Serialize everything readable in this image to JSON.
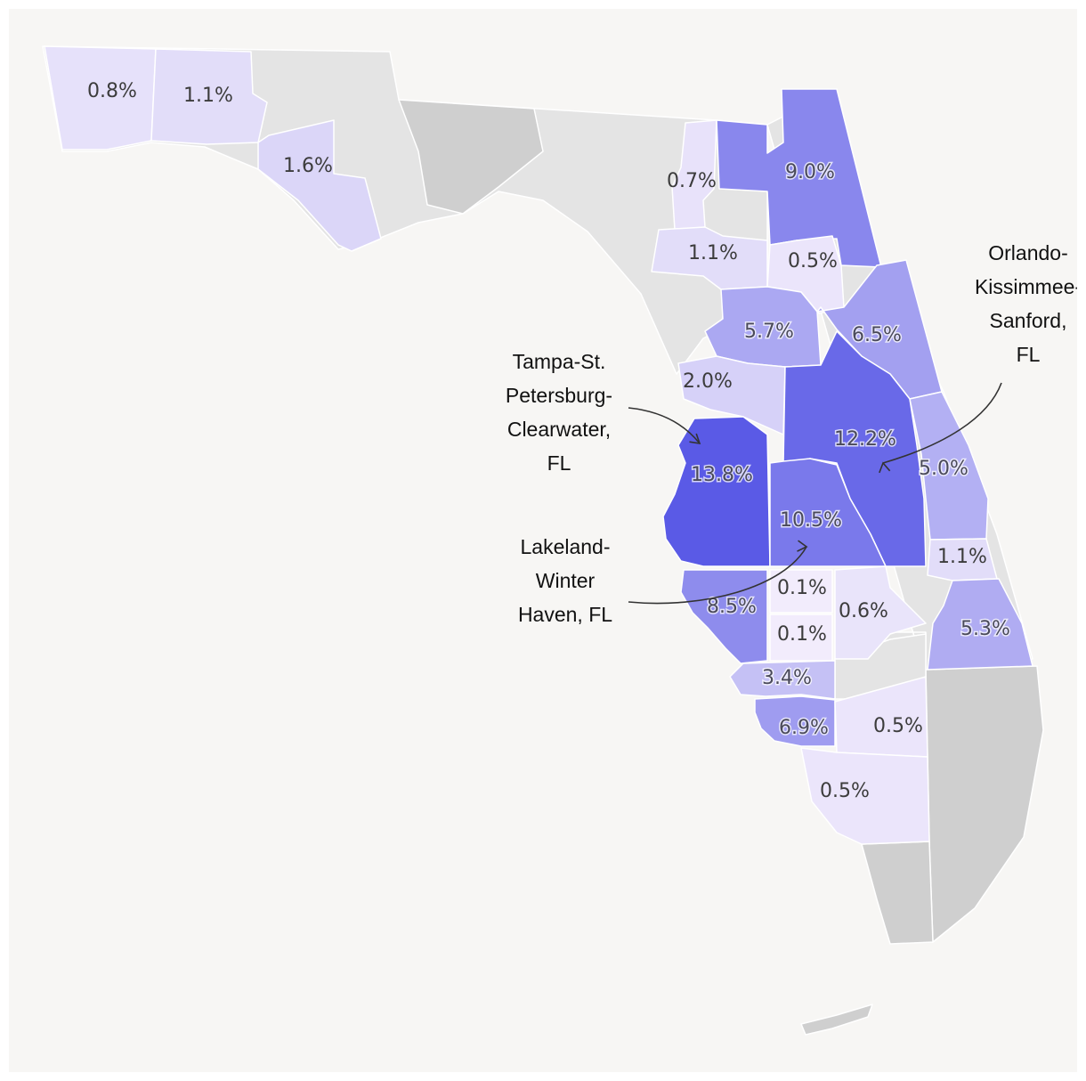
{
  "map": {
    "colors": {
      "background": "#f7f6f4",
      "no_data": "#e4e4e4",
      "no_data_dark": "#cfcfcf",
      "scale_low": "#f4eefc",
      "scale_high": "#5a5ae6"
    },
    "regions": [
      {
        "id": "pensacola",
        "label": "0.8%",
        "value": 0.8
      },
      {
        "id": "crestview",
        "label": "1.1%",
        "value": 1.1
      },
      {
        "id": "panama-city",
        "label": "1.6%",
        "value": 1.6
      },
      {
        "id": "lake-city",
        "label": "0.7%",
        "value": 0.7
      },
      {
        "id": "jacksonville",
        "label": "9.0%",
        "value": 9.0
      },
      {
        "id": "gainesville",
        "label": "1.1%",
        "value": 1.1
      },
      {
        "id": "palatka",
        "label": "0.5%",
        "value": 0.5
      },
      {
        "id": "ocala",
        "label": "5.7%",
        "value": 5.7
      },
      {
        "id": "deltona",
        "label": "6.5%",
        "value": 6.5
      },
      {
        "id": "homosassa",
        "label": "2.0%",
        "value": 2.0
      },
      {
        "id": "orlando",
        "label": "12.2%",
        "value": 12.2
      },
      {
        "id": "tampa",
        "label": "13.8%",
        "value": 13.8
      },
      {
        "id": "palm-bay",
        "label": "5.0%",
        "value": 5.0
      },
      {
        "id": "lakeland",
        "label": "10.5%",
        "value": 10.5
      },
      {
        "id": "sebastian",
        "label": "1.1%",
        "value": 1.1
      },
      {
        "id": "arcadia",
        "label": "0.1%",
        "value": 0.1
      },
      {
        "id": "wauchula",
        "label": "0.1%",
        "value": 0.1
      },
      {
        "id": "sebring",
        "label": "0.6%",
        "value": 0.6
      },
      {
        "id": "north-port",
        "label": "8.5%",
        "value": 8.5
      },
      {
        "id": "port-st-lucie",
        "label": "5.3%",
        "value": 5.3
      },
      {
        "id": "punta-gorda",
        "label": "3.4%",
        "value": 3.4
      },
      {
        "id": "cape-coral",
        "label": "6.9%",
        "value": 6.9
      },
      {
        "id": "clewiston",
        "label": "0.5%",
        "value": 0.5
      },
      {
        "id": "naples",
        "label": "0.5%",
        "value": 0.5
      }
    ],
    "callouts": [
      {
        "id": "tampa",
        "lines": [
          "Tampa-St.",
          "Petersburg-",
          "Clearwater,",
          "FL"
        ]
      },
      {
        "id": "lakeland",
        "lines": [
          "Lakeland-",
          "Winter",
          "Haven, FL"
        ]
      },
      {
        "id": "orlando",
        "lines": [
          "Orlando-",
          "Kissimmee-",
          "Sanford,",
          "FL"
        ]
      }
    ]
  }
}
